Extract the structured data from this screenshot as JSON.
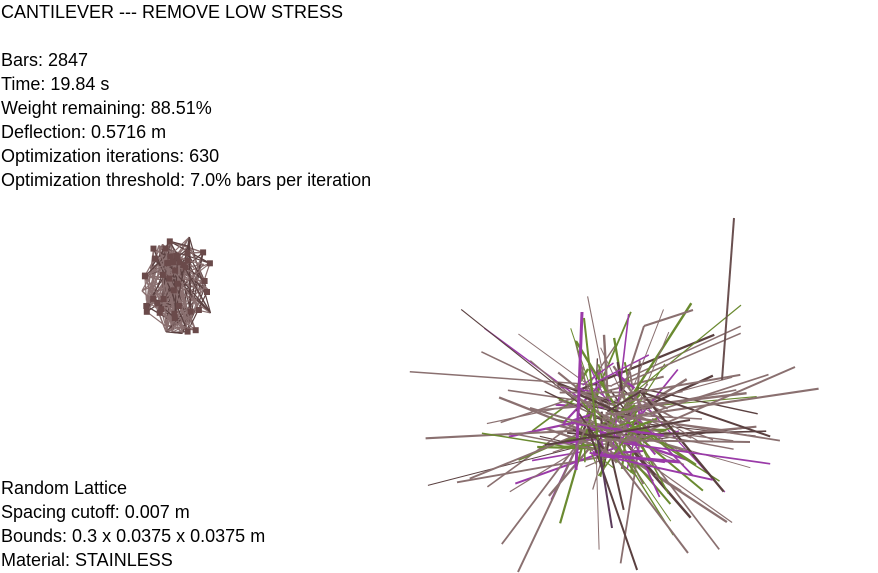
{
  "simulation": {
    "title": "CANTILEVER --- REMOVE LOW STRESS",
    "stats": {
      "bars": "Bars: 2847",
      "time": "Time: 19.84 s",
      "weight_remaining": "Weight remaining: 88.51%",
      "deflection": "Deflection: 0.5716 m",
      "iterations": "Optimization iterations: 630",
      "threshold": "Optimization threshold: 7.0% bars per iteration"
    },
    "lattice": {
      "type": "Random Lattice",
      "spacing": "Spacing cutoff: 0.007 m",
      "bounds": "Bounds: 0.3 x 0.0375 x 0.0375 m",
      "material": "Material: STAINLESS"
    }
  },
  "colors": {
    "background": "#ffffff",
    "text": "#000000",
    "bar_default": "#8a7070",
    "bar_dark": "#5a4040",
    "bar_green": "#6a8a30",
    "bar_purple": "#9a3aa8",
    "node": "#6a4a4a"
  }
}
